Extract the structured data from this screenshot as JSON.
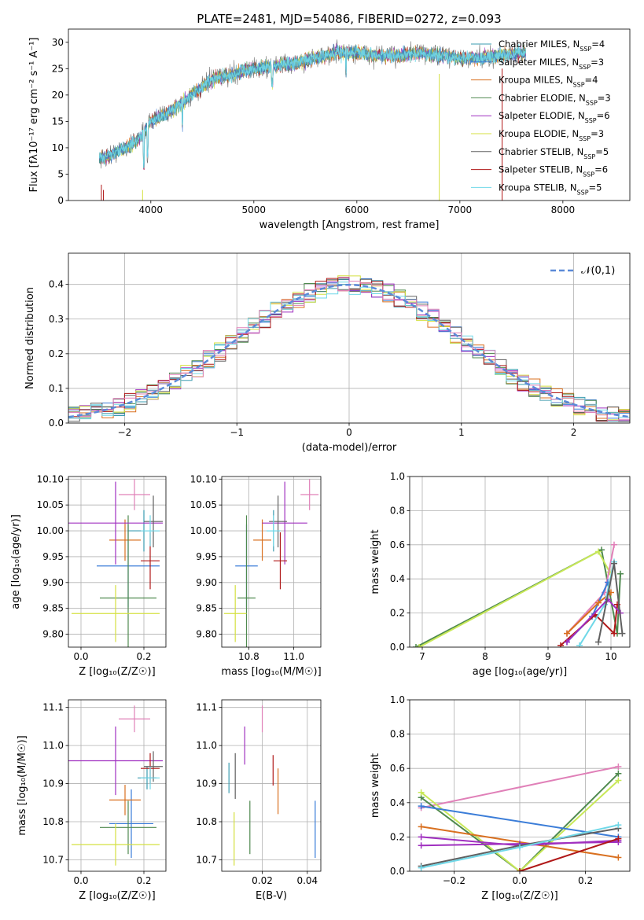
{
  "figure": {
    "title": "PLATE=2481, MJD=54086, FIBERID=0272, z=0.093",
    "colors": {
      "Chabrier MILES": "#3a9bb0",
      "Salpeter MILES": "#3b7dd8",
      "Kroupa MILES": "#d97020",
      "Chabrier ELODIE": "#4f8a4f",
      "Salpeter ELODIE": "#a030c0",
      "Kroupa ELODIE": "#d4e040",
      "Chabrier STELIB": "#606060",
      "Salpeter STELIB": "#b01818",
      "Kroupa STELIB": "#70d8e8",
      "extra_magenta": "#e080b8",
      "extra_green": "#c8e858"
    }
  },
  "chart_data": [
    {
      "id": "spectrum",
      "type": "line",
      "title": "PLATE=2481, MJD=54086, FIBERID=0272, z=0.093",
      "xlabel": "wavelength [Angstrom, rest frame]",
      "ylabel": "Flux [fλ10⁻¹⁷ erg cm⁻² s⁻¹ A⁻¹]",
      "xlim": [
        3200,
        8650
      ],
      "ylim": [
        0,
        32.5
      ],
      "xticks": [
        4000,
        5000,
        6000,
        7000,
        8000
      ],
      "yticks": [
        0,
        5,
        10,
        15,
        20,
        25,
        30
      ],
      "x": [
        3500,
        3600,
        3700,
        3800,
        3900,
        4000,
        4200,
        4400,
        4600,
        4800,
        5000,
        5200,
        5400,
        5600,
        5800,
        6000,
        6200,
        6400,
        6600,
        6800,
        7000,
        7200,
        7400,
        7600
      ],
      "series": [
        {
          "name": "Chabrier MILES, N_SSP=4",
          "values": [
            8,
            8.5,
            9.5,
            10.5,
            12,
            15,
            17,
            20,
            23,
            24,
            25,
            25.5,
            26,
            27,
            28,
            28,
            27.5,
            27.5,
            28,
            27.5,
            27,
            27,
            27.5,
            28
          ]
        }
      ],
      "legend": [
        "Chabrier MILES, N_SSP=4",
        "Salpeter MILES, N_SSP=3",
        "Kroupa MILES, N_SSP=4",
        "Chabrier ELODIE, N_SSP=3",
        "Salpeter ELODIE, N_SSP=6",
        "Kroupa ELODIE, N_SSP=3",
        "Chabrier STELIB, N_SSP=5",
        "Salpeter STELIB, N_SSP=6",
        "Kroupa STELIB, N_SSP=5"
      ],
      "legend_position": "upper-right",
      "grid": false
    },
    {
      "id": "residual-histogram",
      "type": "line",
      "xlabel": "(data-model)/error",
      "ylabel": "Normed distribution",
      "xlim": [
        -2.5,
        2.5
      ],
      "ylim": [
        0,
        0.49
      ],
      "xticks": [
        -2,
        -1,
        0,
        1,
        2
      ],
      "yticks": [
        0.0,
        0.1,
        0.2,
        0.3,
        0.4
      ],
      "legend": [
        "𝒩(0,1)"
      ],
      "legend_position": "upper-right",
      "grid": true
    },
    {
      "id": "age-vs-Z",
      "type": "scatter",
      "xlabel": "Z [log₁₀(Z/Z☉)]",
      "ylabel": "age  [log₁₀(age/yr)]",
      "xlim": [
        -0.04,
        0.27
      ],
      "ylim": [
        9.775,
        10.105
      ],
      "xticks": [
        0.0,
        0.2
      ],
      "yticks": [
        9.8,
        9.85,
        9.9,
        9.95,
        10.0,
        10.05,
        10.1
      ],
      "points": [
        {
          "series": "Chabrier MILES",
          "x": 0.2,
          "y": 10.0,
          "xerr": 0.05,
          "yerr": 0.04
        },
        {
          "series": "Salpeter MILES",
          "x": 0.15,
          "y": 9.932,
          "xerr": 0.1,
          "yerr": 0.08
        },
        {
          "series": "Kroupa MILES",
          "x": 0.14,
          "y": 9.982,
          "xerr": 0.05,
          "yerr": 0.04
        },
        {
          "series": "Chabrier ELODIE",
          "x": 0.15,
          "y": 9.87,
          "xerr": 0.09,
          "yerr": 0.16
        },
        {
          "series": "Salpeter ELODIE",
          "x": 0.11,
          "y": 10.015,
          "xerr": 0.15,
          "yerr": 0.08
        },
        {
          "series": "Kroupa ELODIE",
          "x": 0.11,
          "y": 9.84,
          "xerr": 0.14,
          "yerr": 0.055
        },
        {
          "series": "Chabrier STELIB",
          "x": 0.23,
          "y": 10.018,
          "xerr": 0.03,
          "yerr": 0.05
        },
        {
          "series": "Salpeter STELIB",
          "x": 0.22,
          "y": 9.942,
          "xerr": 0.03,
          "yerr": 0.055
        },
        {
          "series": "Kroupa STELIB",
          "x": 0.22,
          "y": 10.0,
          "xerr": 0.03,
          "yerr": 0.03
        },
        {
          "series": "extra_magenta",
          "x": 0.17,
          "y": 10.07,
          "xerr": 0.05,
          "yerr": 0.03
        }
      ],
      "grid": true
    },
    {
      "id": "age-vs-mass",
      "type": "scatter",
      "xlabel": "mass [log₁₀(M/M☉)]",
      "ylabel": "",
      "xlim": [
        10.68,
        11.12
      ],
      "ylim": [
        9.775,
        10.105
      ],
      "xticks": [
        10.8,
        11.0
      ],
      "yticks": [
        9.8,
        9.85,
        9.9,
        9.95,
        10.0,
        10.05,
        10.1
      ],
      "points": [
        {
          "series": "Chabrier MILES",
          "x": 10.91,
          "y": 10.0,
          "xerr": 0.03,
          "yerr": 0.04
        },
        {
          "series": "Salpeter MILES",
          "x": 10.79,
          "y": 9.932,
          "xerr": 0.05,
          "yerr": 0.08
        },
        {
          "series": "Kroupa MILES",
          "x": 10.86,
          "y": 9.982,
          "xerr": 0.04,
          "yerr": 0.04
        },
        {
          "series": "Chabrier ELODIE",
          "x": 10.79,
          "y": 9.87,
          "xerr": 0.04,
          "yerr": 0.16
        },
        {
          "series": "Salpeter ELODIE",
          "x": 10.96,
          "y": 10.015,
          "xerr": 0.1,
          "yerr": 0.08
        },
        {
          "series": "Kroupa ELODIE",
          "x": 10.74,
          "y": 9.84,
          "xerr": 0.05,
          "yerr": 0.055
        },
        {
          "series": "Chabrier STELIB",
          "x": 10.93,
          "y": 10.018,
          "xerr": 0.04,
          "yerr": 0.05
        },
        {
          "series": "Salpeter STELIB",
          "x": 10.94,
          "y": 9.942,
          "xerr": 0.03,
          "yerr": 0.055
        },
        {
          "series": "Kroupa STELIB",
          "x": 10.91,
          "y": 10.0,
          "xerr": 0.03,
          "yerr": 0.03
        },
        {
          "series": "extra_magenta",
          "x": 11.07,
          "y": 10.07,
          "xerr": 0.04,
          "yerr": 0.03
        }
      ],
      "grid": true
    },
    {
      "id": "mass-weight-vs-age",
      "type": "line",
      "xlabel": "age  [log₁₀(age/yr)]",
      "ylabel": "mass weight",
      "xlim": [
        6.8,
        10.3
      ],
      "ylim": [
        0,
        1.0
      ],
      "xticks": [
        7,
        8,
        9,
        10
      ],
      "yticks": [
        0.0,
        0.2,
        0.4,
        0.6,
        0.8,
        1.0
      ],
      "series": [
        {
          "x": [
            6.9,
            9.85,
            10.1,
            10.15
          ],
          "values": [
            0.0,
            0.57,
            0.08,
            0.43
          ],
          "color": "#4f8a4f"
        },
        {
          "x": [
            6.95,
            9.8,
            9.98
          ],
          "values": [
            0.0,
            0.56,
            0.44
          ],
          "color": "#c8e858"
        },
        {
          "x": [
            9.3,
            9.9,
            10.05
          ],
          "values": [
            0.08,
            0.32,
            0.6
          ],
          "color": "#e080b8"
        },
        {
          "x": [
            9.3,
            9.7,
            9.95
          ],
          "values": [
            0.03,
            0.18,
            0.38
          ],
          "color": "#3b7dd8"
        },
        {
          "x": [
            9.3,
            9.8,
            10.0
          ],
          "values": [
            0.08,
            0.26,
            0.32
          ],
          "color": "#d97020"
        },
        {
          "x": [
            9.2,
            9.75,
            10.05,
            10.1
          ],
          "values": [
            0.01,
            0.19,
            0.08,
            0.25
          ],
          "color": "#b01818"
        },
        {
          "x": [
            9.5,
            9.9,
            10.05
          ],
          "values": [
            0.01,
            0.25,
            0.5
          ],
          "color": "#70d8e8"
        },
        {
          "x": [
            9.3,
            9.95,
            10.15
          ],
          "values": [
            0.03,
            0.28,
            0.2
          ],
          "color": "#a030c0"
        },
        {
          "x": [
            9.8,
            10.05,
            10.18
          ],
          "values": [
            0.03,
            0.49,
            0.08
          ],
          "color": "#606060"
        }
      ],
      "grid": true
    },
    {
      "id": "mass-vs-Z",
      "type": "scatter",
      "xlabel": "Z [log₁₀(Z/Z☉)]",
      "ylabel": "mass [log₁₀(M/M☉)]",
      "xlim": [
        -0.04,
        0.27
      ],
      "ylim": [
        10.67,
        11.12
      ],
      "xticks": [
        0.0,
        0.2
      ],
      "yticks": [
        10.7,
        10.8,
        10.9,
        11.0,
        11.1
      ],
      "points": [
        {
          "series": "Chabrier MILES",
          "x": 0.21,
          "y": 10.915,
          "xerr": 0.03,
          "yerr": 0.03
        },
        {
          "series": "Salpeter MILES",
          "x": 0.16,
          "y": 10.795,
          "xerr": 0.07,
          "yerr": 0.09
        },
        {
          "series": "Kroupa MILES",
          "x": 0.14,
          "y": 10.857,
          "xerr": 0.05,
          "yerr": 0.04
        },
        {
          "series": "Chabrier ELODIE",
          "x": 0.15,
          "y": 10.785,
          "xerr": 0.09,
          "yerr": 0.07
        },
        {
          "series": "Salpeter ELODIE",
          "x": 0.11,
          "y": 10.96,
          "xerr": 0.15,
          "yerr": 0.09
        },
        {
          "series": "Kroupa ELODIE",
          "x": 0.11,
          "y": 10.74,
          "xerr": 0.14,
          "yerr": 0.055
        },
        {
          "series": "Chabrier STELIB",
          "x": 0.23,
          "y": 10.945,
          "xerr": 0.03,
          "yerr": 0.04
        },
        {
          "series": "Salpeter STELIB",
          "x": 0.22,
          "y": 10.94,
          "xerr": 0.03,
          "yerr": 0.04
        },
        {
          "series": "Kroupa STELIB",
          "x": 0.22,
          "y": 10.915,
          "xerr": 0.03,
          "yerr": 0.03
        },
        {
          "series": "extra_magenta",
          "x": 0.17,
          "y": 11.07,
          "xerr": 0.05,
          "yerr": 0.035
        }
      ],
      "grid": true
    },
    {
      "id": "mass-vs-EBV",
      "type": "scatter",
      "xlabel": "E(B-V)",
      "ylabel": "",
      "xlim": [
        0.002,
        0.046
      ],
      "ylim": [
        10.67,
        11.12
      ],
      "xticks": [
        0.02,
        0.04
      ],
      "yticks": [
        10.7,
        10.8,
        10.9,
        11.0,
        11.1
      ],
      "points": [
        {
          "series": "Chabrier MILES",
          "x": 0.0052,
          "y": 10.915,
          "yerr": 0.04
        },
        {
          "series": "Kroupa ELODIE",
          "x": 0.0075,
          "y": 10.755,
          "yerr": 0.07
        },
        {
          "series": "Chabrier STELIB",
          "x": 0.008,
          "y": 10.92,
          "yerr": 0.06
        },
        {
          "series": "Salpeter ELODIE",
          "x": 0.0122,
          "y": 11.0,
          "yerr": 0.05
        },
        {
          "series": "Chabrier ELODIE",
          "x": 0.0145,
          "y": 10.785,
          "yerr": 0.07
        },
        {
          "series": "extra_magenta",
          "x": 0.02,
          "y": 11.07,
          "yerr": 0.035
        },
        {
          "series": "Salpeter STELIB",
          "x": 0.0248,
          "y": 10.935,
          "yerr": 0.04
        },
        {
          "series": "Kroupa MILES",
          "x": 0.027,
          "y": 10.88,
          "yerr": 0.06
        },
        {
          "series": "Salpeter MILES",
          "x": 0.0435,
          "y": 10.78,
          "yerr": 0.075
        }
      ],
      "grid": true
    },
    {
      "id": "mass-weight-vs-Z",
      "type": "line",
      "xlabel": "Z [log₁₀(Z/Z☉)]",
      "ylabel": "mass weight",
      "xlim": [
        -0.335,
        0.335
      ],
      "ylim": [
        0,
        1.0
      ],
      "xticks": [
        -0.2,
        0.0,
        0.2
      ],
      "yticks": [
        0.0,
        0.2,
        0.4,
        0.6,
        0.8,
        1.0
      ],
      "series": [
        {
          "x": [
            -0.3,
            0.3
          ],
          "values": [
            0.37,
            0.61
          ],
          "color": "#e080b8"
        },
        {
          "x": [
            -0.3,
            0.0,
            0.3
          ],
          "values": [
            0.43,
            0.0,
            0.57
          ],
          "color": "#4f8a4f"
        },
        {
          "x": [
            -0.3,
            0.0,
            0.3
          ],
          "values": [
            0.46,
            0.0,
            0.53
          ],
          "color": "#c8e858"
        },
        {
          "x": [
            -0.3,
            0.3
          ],
          "values": [
            0.38,
            0.2
          ],
          "color": "#3b7dd8"
        },
        {
          "x": [
            -0.3,
            0.3
          ],
          "values": [
            0.26,
            0.08
          ],
          "color": "#d97020"
        },
        {
          "x": [
            -0.3,
            0.0,
            0.3
          ],
          "values": [
            0.2,
            0.15,
            0.18
          ],
          "color": "#a030c0"
        },
        {
          "x": [
            -0.3,
            0.0,
            0.3
          ],
          "values": [
            0.15,
            0.16,
            0.17
          ],
          "color": "#a030c0"
        },
        {
          "x": [
            -0.3,
            0.0,
            0.3
          ],
          "values": [
            0.03,
            0.15,
            0.25
          ],
          "color": "#606060"
        },
        {
          "x": [
            -0.3,
            0.0,
            0.3
          ],
          "values": [
            0.02,
            0.14,
            0.27
          ],
          "color": "#70d8e8"
        },
        {
          "x": [
            0.0,
            0.3
          ],
          "values": [
            0.0,
            0.19
          ],
          "color": "#b01818"
        }
      ],
      "grid": true
    }
  ]
}
